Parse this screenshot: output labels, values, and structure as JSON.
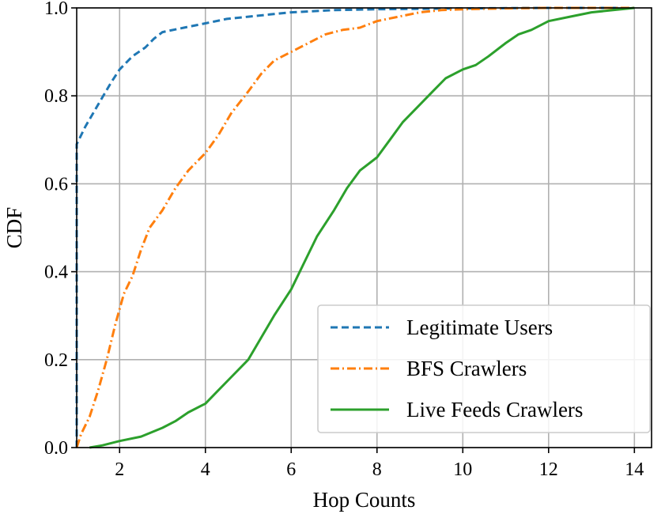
{
  "chart_data": {
    "type": "line",
    "title": "",
    "xlabel": "Hop Counts",
    "ylabel": "CDF",
    "xlim": [
      1,
      14.4
    ],
    "ylim": [
      0,
      1
    ],
    "xticks": [
      2,
      4,
      6,
      8,
      10,
      12,
      14
    ],
    "xtick_labels": [
      "2",
      "4",
      "6",
      "8",
      "10",
      "12",
      "14"
    ],
    "yticks": [
      0,
      0.2,
      0.4,
      0.6,
      0.8,
      1.0
    ],
    "ytick_labels": [
      "0.0",
      "0.2",
      "0.4",
      "0.6",
      "0.8",
      "1.0"
    ],
    "grid": true,
    "legend_position": "lower-right",
    "series": [
      {
        "name": "Legitimate Users",
        "color": "#1f77b4",
        "style": "dashed",
        "x": [
          1.0,
          1.0,
          1.2,
          1.5,
          1.8,
          2.0,
          2.3,
          2.6,
          2.8,
          3.0,
          3.5,
          4.0,
          4.5,
          5.0,
          5.5,
          6.0,
          7.0,
          8.0,
          9.0,
          10.0,
          12.0,
          14.0
        ],
        "y": [
          0.0,
          0.69,
          0.73,
          0.78,
          0.83,
          0.86,
          0.89,
          0.91,
          0.93,
          0.945,
          0.955,
          0.965,
          0.975,
          0.98,
          0.985,
          0.99,
          0.995,
          0.997,
          0.998,
          0.999,
          1.0,
          1.0
        ]
      },
      {
        "name": "BFS Crawlers",
        "color": "#ff7f0e",
        "style": "dashdot",
        "x": [
          1.0,
          1.1,
          1.3,
          1.5,
          1.7,
          1.9,
          2.1,
          2.3,
          2.5,
          2.7,
          3.0,
          3.3,
          3.6,
          4.0,
          4.3,
          4.6,
          5.0,
          5.3,
          5.6,
          6.0,
          6.4,
          6.8,
          7.2,
          7.6,
          8.0,
          8.5,
          9.0,
          9.5,
          10.0,
          11.0,
          12.0,
          14.0
        ],
        "y": [
          0.0,
          0.03,
          0.07,
          0.13,
          0.2,
          0.28,
          0.35,
          0.39,
          0.45,
          0.5,
          0.54,
          0.59,
          0.63,
          0.67,
          0.71,
          0.76,
          0.81,
          0.85,
          0.88,
          0.9,
          0.92,
          0.94,
          0.95,
          0.955,
          0.97,
          0.98,
          0.99,
          0.995,
          0.997,
          0.999,
          1.0,
          1.0
        ]
      },
      {
        "name": "Live Feeds Crawlers",
        "color": "#2ca02c",
        "style": "solid",
        "x": [
          1.3,
          1.6,
          2.0,
          2.5,
          3.0,
          3.3,
          3.6,
          4.0,
          4.3,
          4.6,
          5.0,
          5.3,
          5.6,
          6.0,
          6.3,
          6.6,
          7.0,
          7.3,
          7.6,
          8.0,
          8.3,
          8.6,
          9.0,
          9.3,
          9.6,
          10.0,
          10.3,
          10.6,
          11.0,
          11.3,
          11.6,
          12.0,
          12.5,
          13.0,
          13.5,
          14.0
        ],
        "y": [
          0.0,
          0.005,
          0.015,
          0.025,
          0.045,
          0.06,
          0.08,
          0.1,
          0.13,
          0.16,
          0.2,
          0.25,
          0.3,
          0.36,
          0.42,
          0.48,
          0.54,
          0.59,
          0.63,
          0.66,
          0.7,
          0.74,
          0.78,
          0.81,
          0.84,
          0.86,
          0.87,
          0.89,
          0.92,
          0.94,
          0.95,
          0.97,
          0.98,
          0.99,
          0.995,
          1.0
        ]
      }
    ]
  }
}
